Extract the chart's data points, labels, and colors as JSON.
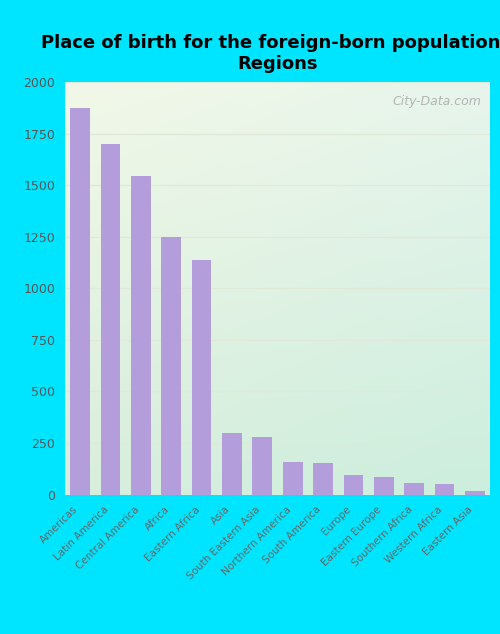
{
  "title": "Place of birth for the foreign-born population -\nRegions",
  "categories": [
    "Americas",
    "Latin America",
    "Central America",
    "Africa",
    "Eastern Africa",
    "Asia",
    "South Eastern Asia",
    "Northern America",
    "South America",
    "Europe",
    "Eastern Europe",
    "Southern Africa",
    "Western Africa",
    "Eastern Asia"
  ],
  "values": [
    1875,
    1700,
    1545,
    1250,
    1140,
    300,
    278,
    158,
    155,
    95,
    85,
    58,
    52,
    18
  ],
  "bar_color": "#b39ddb",
  "background_outer": "#00e5ff",
  "gradient_top_left": "#eef5e8",
  "gradient_bottom_right": "#d4eedd",
  "ylim": [
    0,
    2000
  ],
  "yticks": [
    0,
    250,
    500,
    750,
    1000,
    1250,
    1500,
    1750,
    2000
  ],
  "watermark": "City-Data.com",
  "title_fontsize": 13,
  "tick_label_fontsize": 7.5,
  "ytick_fontsize": 9,
  "grid_color": "#e0e8d8",
  "bar_width": 0.65
}
